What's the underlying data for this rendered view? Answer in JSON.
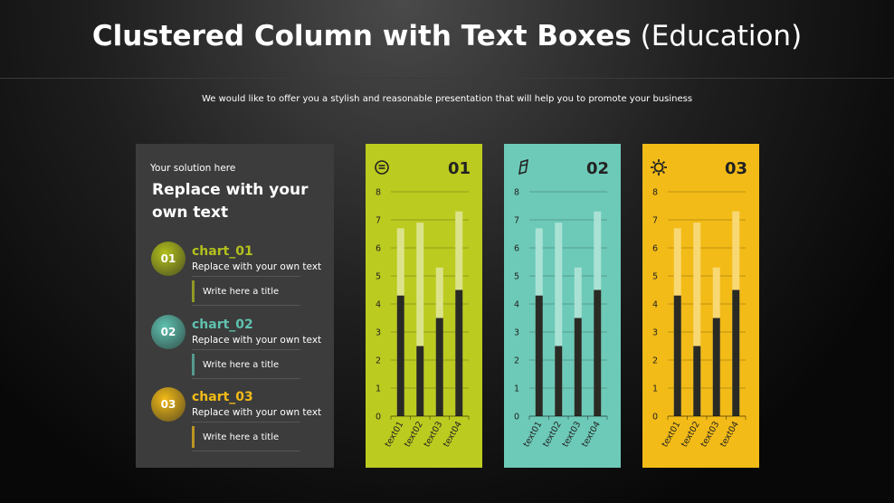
{
  "header": {
    "title": "Clustered Column with Text Boxes",
    "subtitle": "(Education)",
    "tagline": "We would like to offer you a stylish and reasonable  presentation  that will help you to promote your business"
  },
  "sidebar": {
    "kicker": "Your solution here",
    "heading": "Replace with your own text",
    "items": [
      {
        "number": "01",
        "name": "chart_01",
        "text": "Replace with your own text",
        "title": "Write here a title",
        "color": "#b3c11c"
      },
      {
        "number": "02",
        "name": "chart_02",
        "text": "Replace with your own text",
        "title": "Write here a title",
        "color": "#5fc2b0"
      },
      {
        "number": "03",
        "name": "chart_03",
        "text": "Replace with your own text",
        "title": "Write here a title",
        "color": "#f2bb17"
      }
    ]
  },
  "chart_data": [
    {
      "type": "bar",
      "title": "01",
      "background": "#bccb1f",
      "categories": [
        "text01",
        "text02",
        "text03",
        "text04"
      ],
      "series": [
        {
          "color": "#dbe38a",
          "values": [
            6.7,
            6.9,
            5.3,
            7.3
          ]
        },
        {
          "color": "#2a2a24",
          "values": [
            4.3,
            2.5,
            3.5,
            4.5
          ]
        }
      ],
      "ylim": [
        0,
        8
      ],
      "yticks": [
        0,
        1,
        2,
        3,
        4,
        5,
        6,
        7,
        8
      ],
      "grid": true
    },
    {
      "type": "bar",
      "title": "02",
      "background": "#6dcab8",
      "categories": [
        "text01",
        "text02",
        "text03",
        "text04"
      ],
      "series": [
        {
          "color": "#a9e2d5",
          "values": [
            6.7,
            6.9,
            5.3,
            7.3
          ]
        },
        {
          "color": "#2a2a24",
          "values": [
            4.3,
            2.5,
            3.5,
            4.5
          ]
        }
      ],
      "ylim": [
        0,
        8
      ],
      "yticks": [
        0,
        1,
        2,
        3,
        4,
        5,
        6,
        7,
        8
      ],
      "grid": true
    },
    {
      "type": "bar",
      "title": "03",
      "background": "#f2bb17",
      "categories": [
        "text01",
        "text02",
        "text03",
        "text04"
      ],
      "series": [
        {
          "color": "#f8d873",
          "values": [
            6.7,
            6.9,
            5.3,
            7.3
          ]
        },
        {
          "color": "#2a2a24",
          "values": [
            4.3,
            2.5,
            3.5,
            4.5
          ]
        }
      ],
      "ylim": [
        0,
        8
      ],
      "yticks": [
        0,
        1,
        2,
        3,
        4,
        5,
        6,
        7,
        8
      ],
      "grid": true
    }
  ]
}
